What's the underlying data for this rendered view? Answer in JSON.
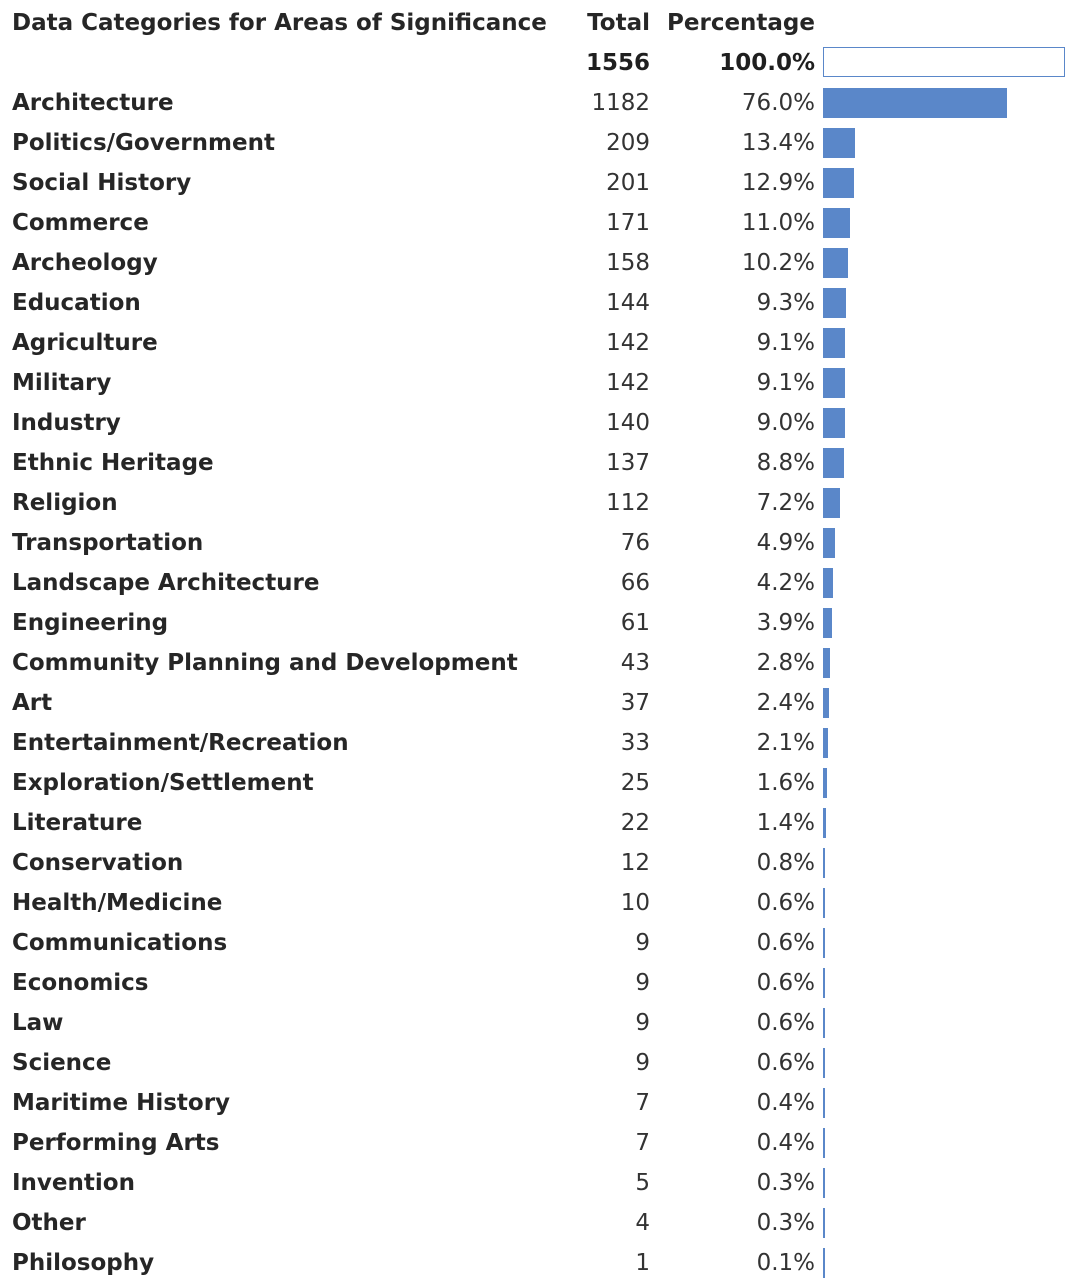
{
  "header": {
    "category": "Data Categories for Areas of Significance",
    "total": "Total",
    "percentage": "Percentage"
  },
  "summary": {
    "total": "1556",
    "percentage": "100.0%",
    "fraction": 1.0
  },
  "chart_data": {
    "type": "bar",
    "orientation": "horizontal",
    "title": "",
    "columns": [
      "Data Categories for Areas of Significance",
      "Total",
      "Percentage"
    ],
    "total": 1556,
    "categories": [
      "Architecture",
      "Politics/Government",
      "Social History",
      "Commerce",
      "Archeology",
      "Education",
      "Agriculture",
      "Military",
      "Industry",
      "Ethnic Heritage",
      "Religion",
      "Transportation",
      "Landscape Architecture",
      "Engineering",
      "Community Planning and Development",
      "Art",
      "Entertainment/Recreation",
      "Exploration/Settlement",
      "Literature",
      "Conservation",
      "Health/Medicine",
      "Communications",
      "Economics",
      "Law",
      "Science",
      "Maritime History",
      "Performing Arts",
      "Invention",
      "Other",
      "Philosophy"
    ],
    "totals": [
      1182,
      209,
      201,
      171,
      158,
      144,
      142,
      142,
      140,
      137,
      112,
      76,
      66,
      61,
      43,
      37,
      33,
      25,
      22,
      12,
      10,
      9,
      9,
      9,
      9,
      7,
      7,
      5,
      4,
      1
    ],
    "percentages": [
      76.0,
      13.4,
      12.9,
      11.0,
      10.2,
      9.3,
      9.1,
      9.1,
      9.0,
      8.8,
      7.2,
      4.9,
      4.2,
      3.9,
      2.8,
      2.4,
      2.1,
      1.6,
      1.4,
      0.8,
      0.6,
      0.6,
      0.6,
      0.6,
      0.6,
      0.4,
      0.4,
      0.3,
      0.3,
      0.1
    ],
    "percent_labels": [
      "76.0%",
      "13.4%",
      "12.9%",
      "11.0%",
      "10.2%",
      "9.3%",
      "9.1%",
      "9.1%",
      "9.0%",
      "8.8%",
      "7.2%",
      "4.9%",
      "4.2%",
      "3.9%",
      "2.8%",
      "2.4%",
      "2.1%",
      "1.6%",
      "1.4%",
      "0.8%",
      "0.6%",
      "0.6%",
      "0.6%",
      "0.6%",
      "0.6%",
      "0.4%",
      "0.4%",
      "0.3%",
      "0.3%",
      "0.1%"
    ],
    "bar_color": "#5a87c9",
    "grid": false
  }
}
